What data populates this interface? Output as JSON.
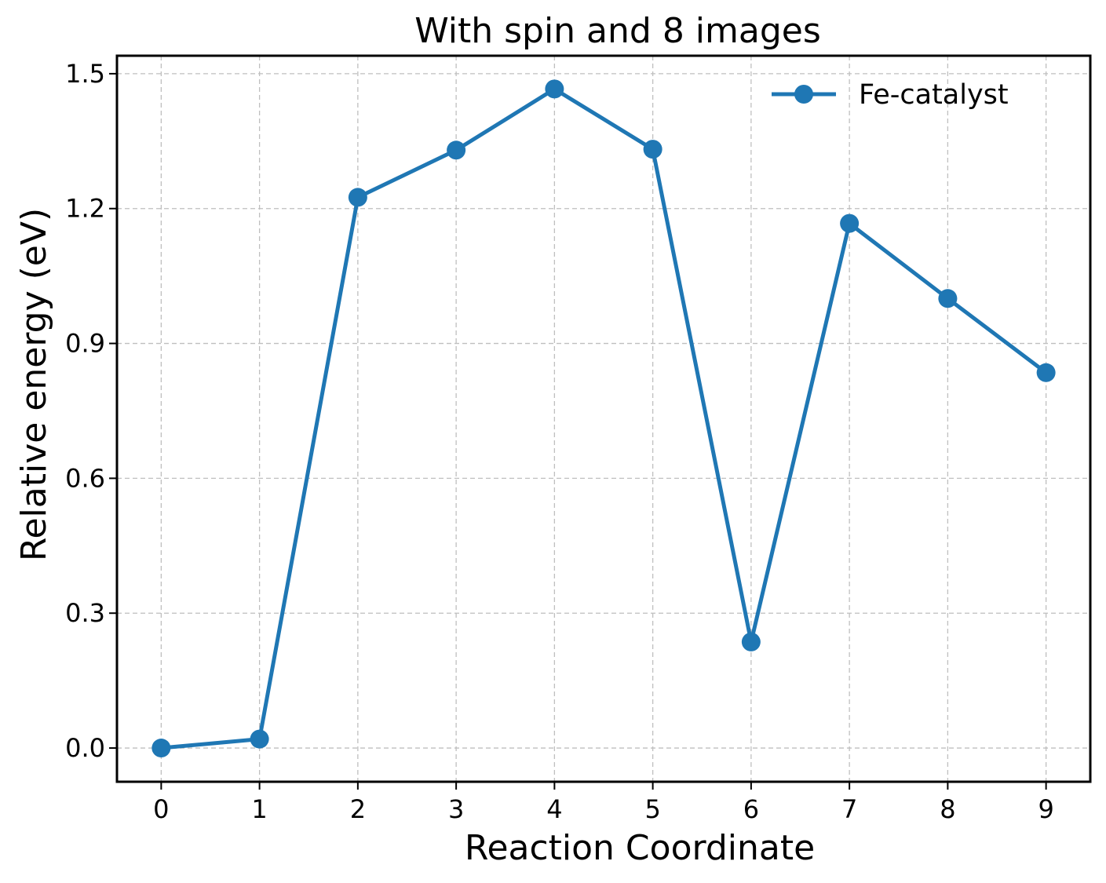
{
  "chart_data": {
    "type": "line",
    "title": "With spin  and 8 images",
    "xlabel": "Reaction Coordinate",
    "ylabel": "Relative energy (eV)",
    "xlim": [
      -0.45,
      9.45
    ],
    "ylim": [
      -0.075,
      1.54
    ],
    "x_ticks": [
      "0",
      "1",
      "2",
      "3",
      "4",
      "5",
      "6",
      "7",
      "8",
      "9"
    ],
    "y_ticks": [
      "0.0",
      "0.3",
      "0.6",
      "0.9",
      "1.2",
      "1.5"
    ],
    "grid": true,
    "legend_position": "top-right",
    "series": [
      {
        "name": "Fe-catalyst",
        "color": "#1f77b4",
        "marker": "circle",
        "x": [
          0,
          1,
          2,
          3,
          4,
          5,
          6,
          7,
          8,
          9
        ],
        "y": [
          0.0,
          0.02,
          1.225,
          1.33,
          1.466,
          1.332,
          0.236,
          1.167,
          1.0,
          0.835
        ]
      }
    ]
  }
}
